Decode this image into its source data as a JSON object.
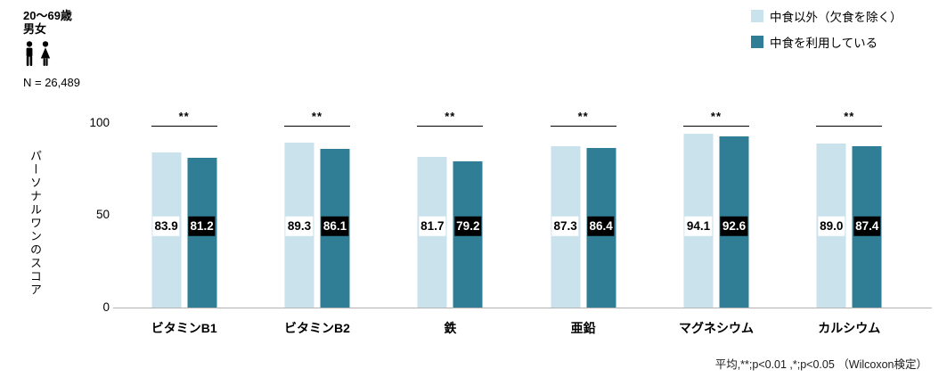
{
  "header": {
    "age_group": "20～69歳",
    "gender": "男女",
    "n_label": "N = 26,489"
  },
  "legend": [
    {
      "label": "中食以外（欠食を除く）",
      "color": "#c9e2ec"
    },
    {
      "label": "中食を利用している",
      "color": "#2f7e95"
    }
  ],
  "chart_data": {
    "type": "bar",
    "title": "",
    "categories": [
      "ビタミンB1",
      "ビタミンB2",
      "鉄",
      "亜鉛",
      "マグネシウム",
      "カルシウム"
    ],
    "series": [
      {
        "name": "中食以外（欠食を除く）",
        "color": "#c9e2ec",
        "values": [
          83.9,
          89.3,
          81.7,
          87.3,
          94.1,
          89.0
        ]
      },
      {
        "name": "中食を利用している",
        "color": "#2f7e95",
        "values": [
          81.2,
          86.1,
          79.2,
          86.4,
          92.6,
          87.4
        ]
      }
    ],
    "significance": [
      "**",
      "**",
      "**",
      "**",
      "**",
      "**"
    ],
    "xlabel": "",
    "ylabel": "パーソナルワンのスコア",
    "yticks": [
      100,
      50,
      0
    ],
    "ylim": [
      0,
      100
    ],
    "grid": false,
    "legend_position": "top-right"
  },
  "footnote": "平均,**;p<0.01 ,*;p<0.05 （Wilcoxon検定）"
}
